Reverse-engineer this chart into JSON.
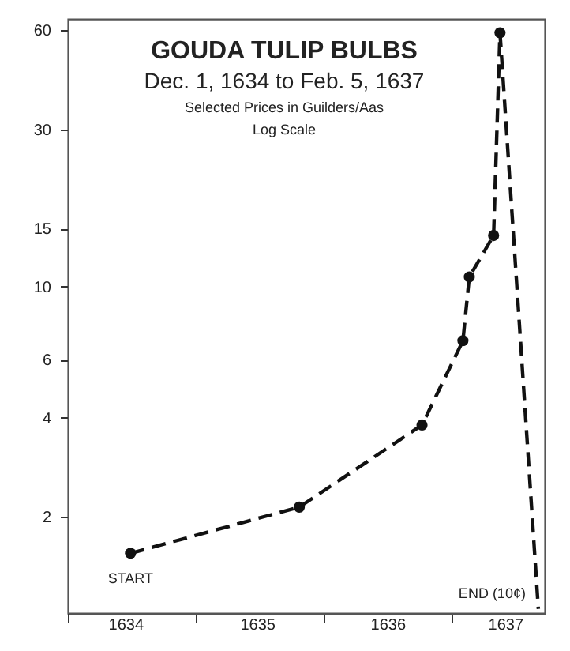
{
  "chart_data": {
    "type": "line",
    "title": "GOUDA TULIP BULBS",
    "subtitle": "Dec. 1, 1634 to Feb. 5, 1637",
    "annotations": [
      "Selected Prices in Guilders/Aas",
      "Log Scale",
      {
        "text": "START",
        "x": 1634.49,
        "y": 1.55
      },
      {
        "text": "END (10¢)",
        "x": 1637.68,
        "y": 1.05
      }
    ],
    "series": [
      {
        "color": "#111111",
        "x": [
          1634.49,
          1635.81,
          1636.77,
          1637.09,
          1637.14,
          1637.33,
          1637.38
        ],
        "values": [
          1.55,
          2.14,
          3.8,
          6.85,
          10.7,
          14.3,
          59
        ],
        "marker": "circle",
        "line_style": "dashed"
      },
      {
        "color": "#111111",
        "x": [
          1637.38,
          1637.68
        ],
        "values": [
          59,
          1.05
        ],
        "marker": "none",
        "line_style": "dashed"
      }
    ],
    "log": "y",
    "grid": false,
    "xlim": [
      1634,
      1637.73
    ],
    "ylim": [
      1.02,
      65
    ],
    "xticks": [
      {
        "value": 1634,
        "label": null
      },
      {
        "value": 1634.45,
        "label": "1634"
      },
      {
        "value": 1635,
        "label": null
      },
      {
        "value": 1635.48,
        "label": "1635"
      },
      {
        "value": 1636,
        "label": null
      },
      {
        "value": 1636.5,
        "label": "1636"
      },
      {
        "value": 1637,
        "label": null
      },
      {
        "value": 1637.42,
        "label": "1637"
      }
    ],
    "yticks": [
      2,
      4,
      6,
      10,
      15,
      30,
      60
    ]
  }
}
